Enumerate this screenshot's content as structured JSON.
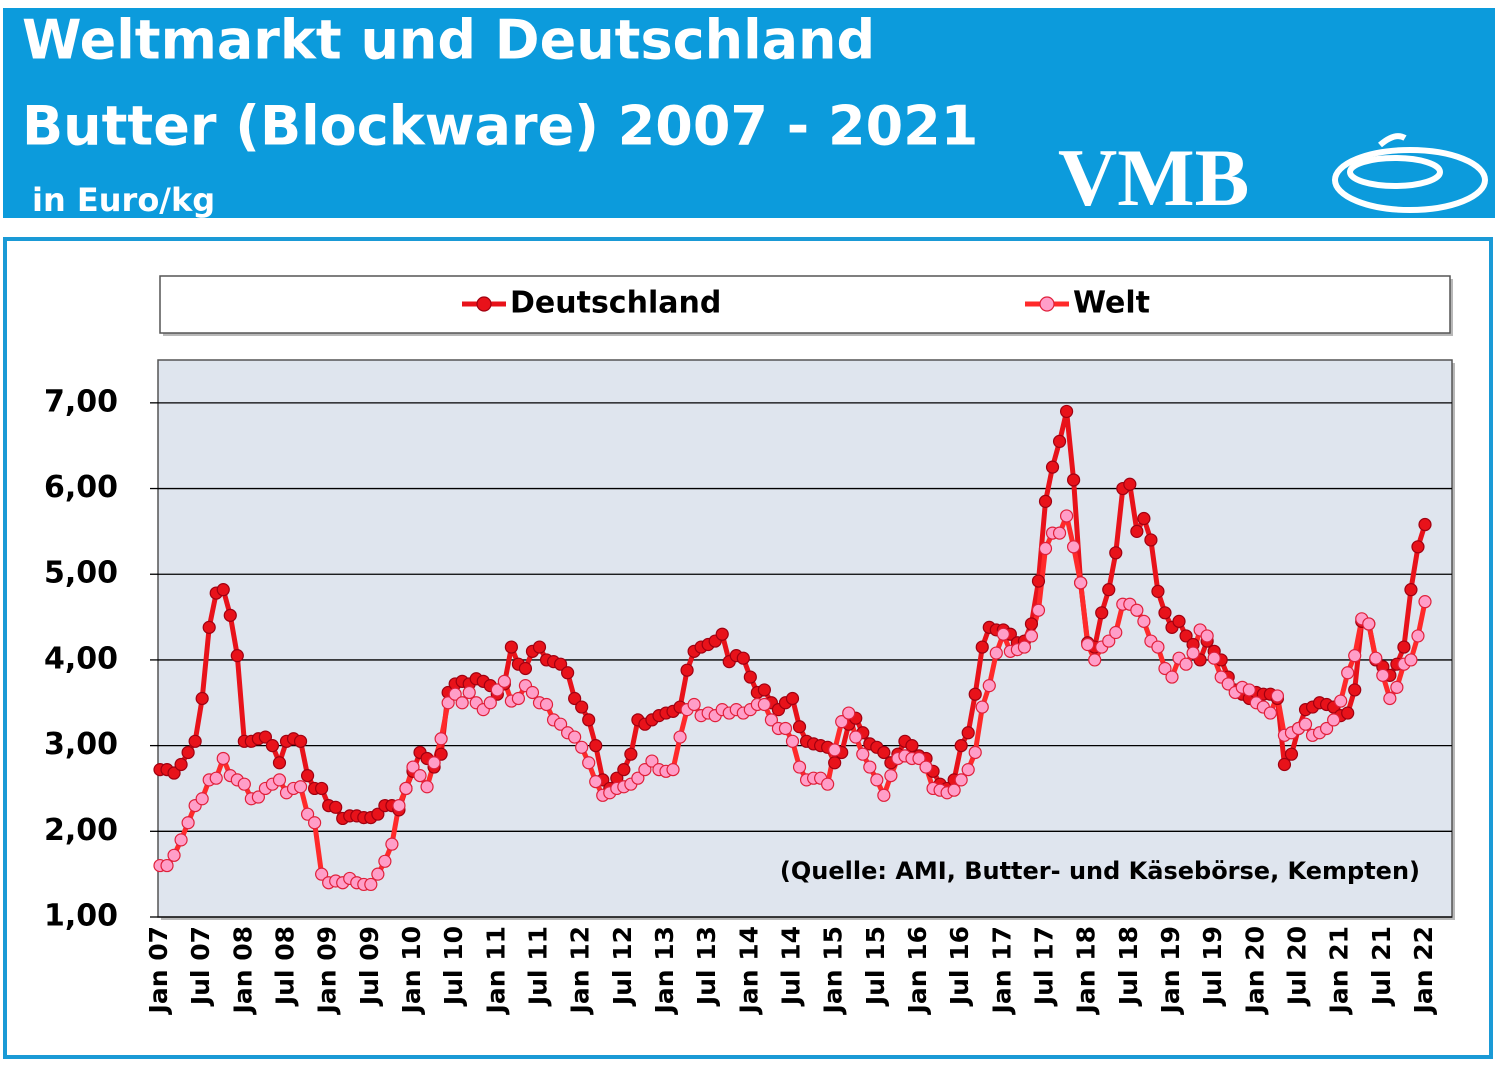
{
  "chart_data": {
    "type": "line",
    "title": "Weltmarkt und Deutschland",
    "subtitle": "Butter (Blockware) 2007 - 2021",
    "unit_label": "in Euro/kg",
    "logo": "VMB",
    "annotation": "(Quelle: AMI, Butter- und Käsebörse, Kempten)",
    "categories": [
      "Jan 07",
      null,
      null,
      null,
      null,
      null,
      "Jul 07",
      null,
      null,
      null,
      null,
      null,
      "Jan 08",
      null,
      null,
      null,
      null,
      null,
      "Jul 08",
      null,
      null,
      null,
      null,
      null,
      "Jan 09",
      null,
      null,
      null,
      null,
      null,
      "Jul 09",
      null,
      null,
      null,
      null,
      null,
      "Jan 10",
      null,
      null,
      null,
      null,
      null,
      "Jul 10",
      null,
      null,
      null,
      null,
      null,
      "Jan 11",
      null,
      null,
      null,
      null,
      null,
      "Jul 11",
      null,
      null,
      null,
      null,
      null,
      "Jan 12",
      null,
      null,
      null,
      null,
      null,
      "Jul 12",
      null,
      null,
      null,
      null,
      null,
      "Jan 13",
      null,
      null,
      null,
      null,
      null,
      "Jul 13",
      null,
      null,
      null,
      null,
      null,
      "Jan 14",
      null,
      null,
      null,
      null,
      null,
      "Jul 14",
      null,
      null,
      null,
      null,
      null,
      "Jan 15",
      null,
      null,
      null,
      null,
      null,
      "Jul 15",
      null,
      null,
      null,
      null,
      null,
      "Jan 16",
      null,
      null,
      null,
      null,
      null,
      "Jul 16",
      null,
      null,
      null,
      null,
      null,
      "Jan 17",
      null,
      null,
      null,
      null,
      null,
      "Jul 17",
      null,
      null,
      null,
      null,
      null,
      "Jan 18",
      null,
      null,
      null,
      null,
      null,
      "Jul 18",
      null,
      null,
      null,
      null,
      null,
      "Jan 19",
      null,
      null,
      null,
      null,
      null,
      "Jul 19",
      null,
      null,
      null,
      null,
      null,
      "Jan 20",
      null,
      null,
      null,
      null,
      null,
      "Jul 20",
      null,
      null,
      null,
      null,
      null,
      "Jan 21",
      null,
      null,
      null,
      null,
      null,
      "Jul 21",
      null,
      null,
      null,
      null,
      null,
      "Jan 22"
    ],
    "series": [
      {
        "name": "Deutschland",
        "color": "#e8121a",
        "marker_color": "#e8121a",
        "values": [
          2.72,
          2.72,
          2.68,
          2.78,
          2.92,
          3.05,
          3.55,
          4.38,
          4.78,
          4.82,
          4.52,
          4.05,
          3.05,
          3.05,
          3.08,
          3.1,
          3.0,
          2.8,
          3.05,
          3.08,
          3.05,
          2.65,
          2.5,
          2.5,
          2.3,
          2.28,
          2.15,
          2.18,
          2.18,
          2.16,
          2.16,
          2.2,
          2.3,
          2.3,
          2.25,
          2.5,
          2.7,
          2.92,
          2.85,
          2.75,
          2.9,
          3.62,
          3.72,
          3.75,
          3.72,
          3.78,
          3.75,
          3.7,
          3.6,
          3.72,
          4.15,
          3.95,
          3.9,
          4.1,
          4.15,
          4.0,
          3.98,
          3.95,
          3.85,
          3.55,
          3.45,
          3.3,
          3.0,
          2.6,
          2.5,
          2.62,
          2.72,
          2.9,
          3.3,
          3.25,
          3.3,
          3.35,
          3.38,
          3.4,
          3.45,
          3.88,
          4.1,
          4.15,
          4.18,
          4.22,
          4.3,
          3.98,
          4.05,
          4.02,
          3.8,
          3.62,
          3.65,
          3.5,
          3.42,
          3.5,
          3.55,
          3.22,
          3.05,
          3.02,
          3.0,
          2.98,
          2.8,
          2.92,
          3.25,
          3.32,
          3.15,
          3.02,
          2.98,
          2.92,
          2.8,
          2.9,
          3.05,
          3.0,
          2.88,
          2.85,
          2.7,
          2.55,
          2.5,
          2.6,
          3.0,
          3.15,
          3.6,
          4.15,
          4.38,
          4.35,
          4.35,
          4.3,
          4.2,
          4.22,
          4.42,
          4.92,
          5.85,
          6.25,
          6.55,
          6.9,
          6.1,
          4.9,
          4.2,
          4.15,
          4.55,
          4.82,
          5.25,
          6.0,
          6.05,
          5.5,
          5.65,
          5.4,
          4.8,
          4.55,
          4.38,
          4.45,
          4.28,
          4.18,
          4.0,
          4.22,
          4.1,
          4.0,
          3.8,
          3.65,
          3.6,
          3.55,
          3.62,
          3.6,
          3.6,
          3.55,
          2.78,
          2.9,
          3.2,
          3.42,
          3.45,
          3.5,
          3.48,
          3.45,
          3.35,
          3.38,
          3.65,
          4.45,
          4.42,
          4.0,
          3.92,
          3.82,
          3.95,
          4.15,
          4.82,
          5.32,
          5.58
        ]
      },
      {
        "name": "Welt",
        "color": "#ff2a2a",
        "marker_color": "#ff9ec8",
        "values": [
          1.6,
          1.6,
          1.72,
          1.9,
          2.1,
          2.3,
          2.38,
          2.6,
          2.62,
          2.85,
          2.65,
          2.6,
          2.55,
          2.38,
          2.4,
          2.5,
          2.55,
          2.6,
          2.45,
          2.5,
          2.52,
          2.2,
          2.1,
          1.5,
          1.4,
          1.42,
          1.4,
          1.45,
          1.4,
          1.38,
          1.38,
          1.5,
          1.65,
          1.85,
          2.3,
          2.5,
          2.75,
          2.65,
          2.52,
          2.8,
          3.08,
          3.5,
          3.6,
          3.5,
          3.62,
          3.5,
          3.42,
          3.5,
          3.65,
          3.75,
          3.52,
          3.55,
          3.7,
          3.62,
          3.5,
          3.48,
          3.3,
          3.25,
          3.15,
          3.1,
          2.98,
          2.8,
          2.58,
          2.42,
          2.45,
          2.5,
          2.52,
          2.55,
          2.62,
          2.72,
          2.82,
          2.72,
          2.7,
          2.72,
          3.1,
          3.42,
          3.48,
          3.35,
          3.38,
          3.35,
          3.42,
          3.38,
          3.42,
          3.38,
          3.42,
          3.48,
          3.48,
          3.3,
          3.2,
          3.2,
          3.05,
          2.75,
          2.6,
          2.62,
          2.62,
          2.55,
          2.95,
          3.28,
          3.38,
          3.1,
          2.9,
          2.75,
          2.6,
          2.42,
          2.65,
          2.85,
          2.88,
          2.85,
          2.85,
          2.75,
          2.5,
          2.48,
          2.45,
          2.48,
          2.6,
          2.72,
          2.92,
          3.45,
          3.7,
          4.08,
          4.3,
          4.1,
          4.12,
          4.15,
          4.28,
          4.58,
          5.3,
          5.48,
          5.48,
          5.68,
          5.32,
          4.9,
          4.18,
          4.0,
          4.15,
          4.22,
          4.32,
          4.65,
          4.65,
          4.58,
          4.45,
          4.22,
          4.15,
          3.9,
          3.8,
          4.02,
          3.95,
          4.08,
          4.35,
          4.28,
          4.02,
          3.8,
          3.72,
          3.62,
          3.68,
          3.65,
          3.5,
          3.45,
          3.38,
          3.58,
          3.12,
          3.15,
          3.2,
          3.25,
          3.12,
          3.15,
          3.2,
          3.3,
          3.52,
          3.85,
          4.05,
          4.48,
          4.42,
          4.02,
          3.82,
          3.55,
          3.68,
          3.95,
          4.0,
          4.28,
          4.68
        ]
      }
    ],
    "ylim": [
      1,
      7.5
    ],
    "yticks": [
      {
        "value": 1,
        "label": "1,00"
      },
      {
        "value": 2,
        "label": "2,00"
      },
      {
        "value": 3,
        "label": "3,00"
      },
      {
        "value": 4,
        "label": "4,00"
      },
      {
        "value": 5,
        "label": "5,00"
      },
      {
        "value": 6,
        "label": "6,00"
      },
      {
        "value": 7,
        "label": "7,00"
      }
    ],
    "grid": true
  }
}
